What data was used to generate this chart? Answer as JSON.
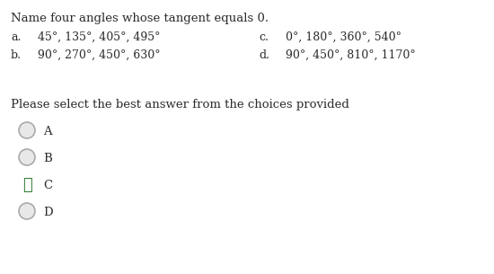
{
  "title": "Name four angles whose tangent equals 0.",
  "choices": [
    {
      "label": "a.",
      "text": "45°, 135°, 405°, 495°"
    },
    {
      "label": "b.",
      "text": "90°, 270°, 450°, 630°"
    },
    {
      "label": "c.",
      "text": "0°, 180°, 360°, 540°"
    },
    {
      "label": "d.",
      "text": "90°, 450°, 810°, 1170°"
    }
  ],
  "prompt": "Please select the best answer from the choices provided",
  "radio_labels": [
    "A",
    "B",
    "C",
    "D"
  ],
  "correct_index": 2,
  "bg_color": "#ffffff",
  "text_color": "#2b2b2b",
  "radio_edge_color": "#aaaaaa",
  "radio_fill_color": "#e8e8e8",
  "check_color": "#2e7d32",
  "title_fontsize": 9.5,
  "choice_fontsize": 9.0,
  "prompt_fontsize": 9.5,
  "radio_fontsize": 9.5
}
